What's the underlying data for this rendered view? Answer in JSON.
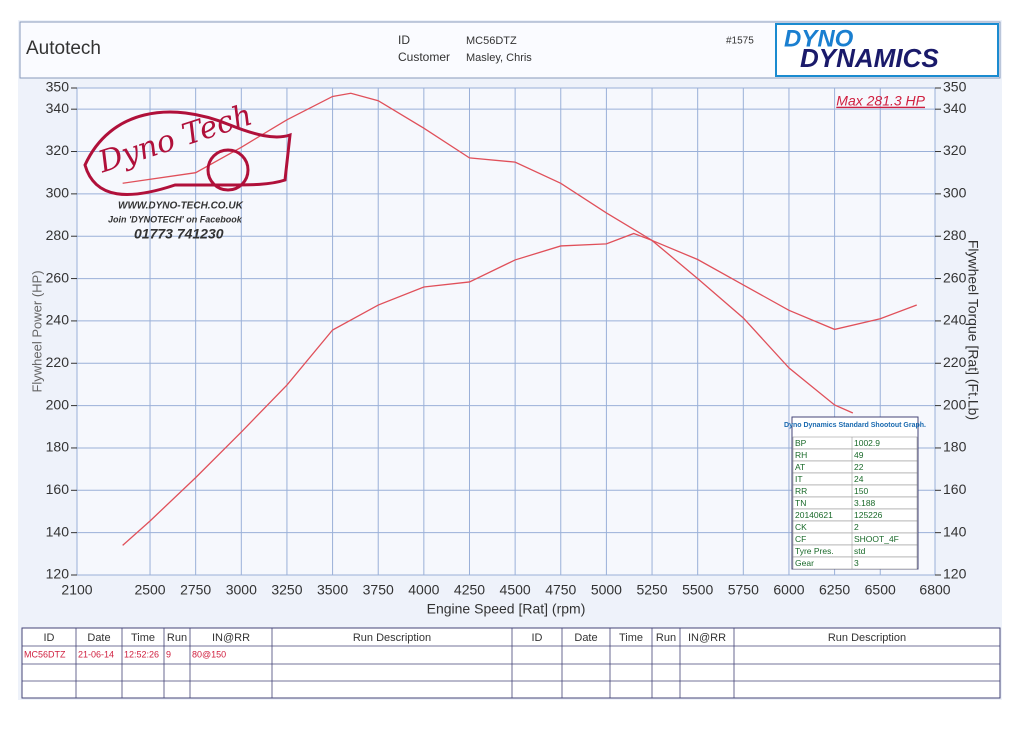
{
  "header": {
    "company": "Autotech",
    "id_label": "ID",
    "id_value": "MC56DTZ",
    "customer_label": "Customer",
    "customer_value": "Masley, Chris",
    "sheet_no": "#1575",
    "brand_line1": "DYNO",
    "brand_line2": "DYNAMICS"
  },
  "logo": {
    "name": "Dyno Tech",
    "website": "WWW.DYNO-TECH.CO.UK",
    "facebook": "Join 'DYNOTECH' on Facebook",
    "phone": "01773 741230"
  },
  "chart_data": {
    "type": "line",
    "xlabel": "Engine Speed [Rat] (rpm)",
    "ylabel": "Flywheel Power (HP)",
    "y2label": "Flywheel Torque [Rat] (Ft.Lb)",
    "annotations": [
      "Max 281.3 HP"
    ],
    "xlim": [
      2100,
      6800
    ],
    "xticks": [
      2100,
      2500,
      2750,
      3000,
      3250,
      3500,
      3750,
      4000,
      4250,
      4500,
      4750,
      5000,
      5250,
      5500,
      5750,
      6000,
      6250,
      6500,
      6800
    ],
    "ylim": [
      120,
      350
    ],
    "yticks": [
      120,
      140,
      160,
      180,
      200,
      220,
      240,
      260,
      280,
      300,
      320,
      340,
      350
    ],
    "y2lim": [
      120,
      350
    ],
    "y2ticks": [
      120,
      140,
      160,
      180,
      200,
      220,
      240,
      260,
      280,
      300,
      320,
      340,
      350
    ],
    "grid": true,
    "series": [
      {
        "name": "Power",
        "color": "#e0505a",
        "x": [
          2350,
          2500,
          2750,
          3000,
          3250,
          3500,
          3750,
          4000,
          4250,
          4500,
          4750,
          5000,
          5150,
          5250,
          5500,
          5750,
          6000,
          6250,
          6350
        ],
        "values": [
          134,
          145.5,
          166,
          187.5,
          209.7,
          235.7,
          247.5,
          256,
          258.4,
          268.8,
          275.4,
          276.4,
          281.3,
          278,
          260,
          241.4,
          217.8,
          200.3,
          196.5
        ]
      },
      {
        "name": "Torque",
        "color": "#e0505a",
        "axis": "y2",
        "x": [
          2350,
          2750,
          3000,
          3250,
          3500,
          3600,
          3750,
          4000,
          4250,
          4500,
          4750,
          5000,
          5250,
          5500,
          5750,
          6000,
          6250,
          6500,
          6700
        ],
        "values": [
          305,
          310,
          322,
          335,
          346,
          347.5,
          344,
          331,
          317,
          315,
          305,
          291,
          278,
          269,
          257,
          245,
          236,
          241,
          247.5
        ]
      }
    ]
  },
  "params": {
    "title": "Dyno Dynamics Standard Shootout Graph.",
    "rows": [
      [
        "BP",
        "1002.9"
      ],
      [
        "RH",
        "49"
      ],
      [
        "AT",
        "22"
      ],
      [
        "IT",
        "24"
      ],
      [
        "RR",
        "150"
      ],
      [
        "TN",
        "3.188"
      ],
      [
        "20140621",
        "125226"
      ],
      [
        "CK",
        "2"
      ],
      [
        "CF",
        "SHOOT_4F"
      ],
      [
        "Tyre Pres.",
        "std"
      ],
      [
        "Gear",
        "3"
      ]
    ]
  },
  "runs": {
    "headers": [
      "ID",
      "Date",
      "Time",
      "Run",
      "IN@RR",
      "Run Description",
      "ID",
      "Date",
      "Time",
      "Run",
      "IN@RR",
      "Run Description"
    ],
    "rows": [
      [
        "MC56DTZ",
        "21-06-14",
        "12:52:26",
        "9",
        "80@150"
      ]
    ]
  }
}
